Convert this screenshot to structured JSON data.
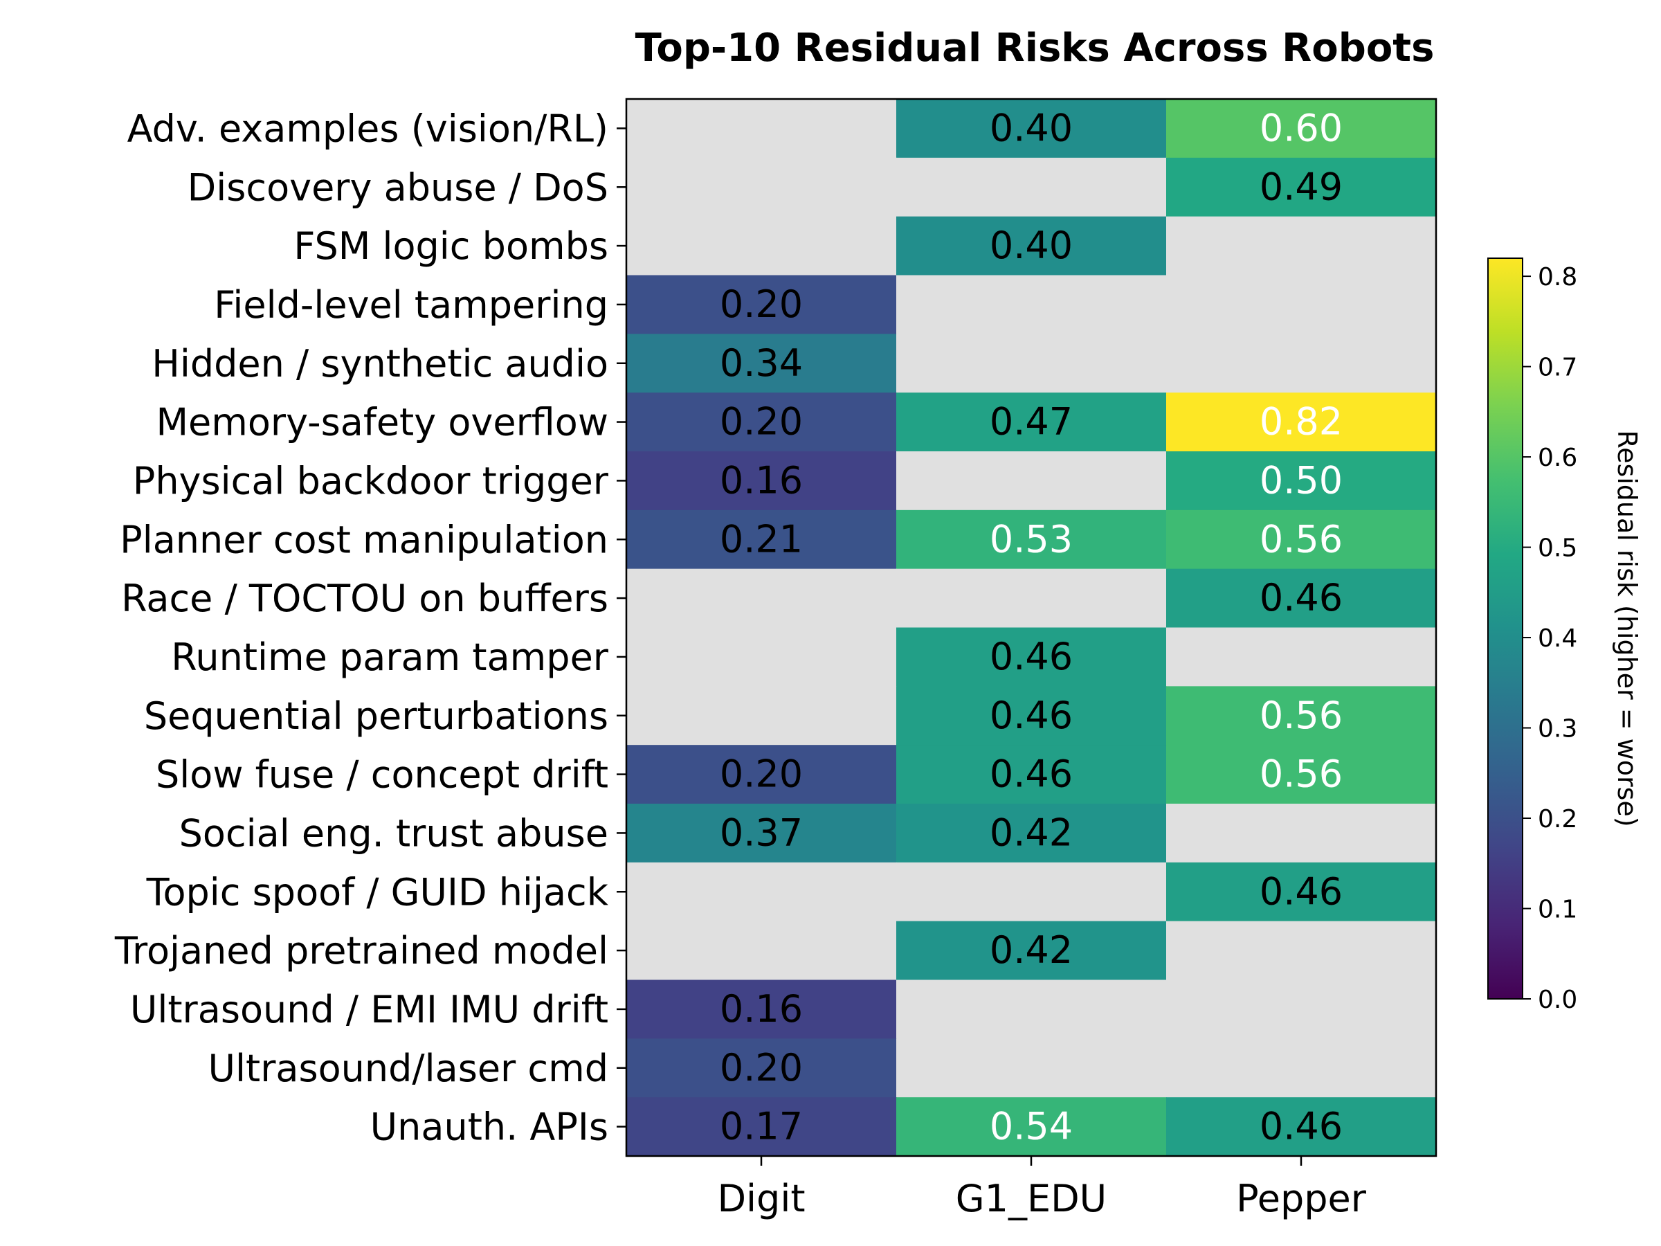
{
  "chart_data": {
    "type": "heatmap",
    "title": "Top-10 Residual Risks Across Robots",
    "xlabel": "",
    "ylabel": "",
    "columns": [
      "Digit",
      "G1_EDU",
      "Pepper"
    ],
    "rows": [
      "Adv. examples (vision/RL)",
      "Discovery abuse / DoS",
      "FSM logic bombs",
      "Field-level tampering",
      "Hidden / synthetic audio",
      "Memory-safety overflow",
      "Physical backdoor trigger",
      "Planner cost manipulation",
      "Race / TOCTOU on buffers",
      "Runtime param tamper",
      "Sequential perturbations",
      "Slow fuse / concept drift",
      "Social eng. trust abuse",
      "Topic spoof / GUID hijack",
      "Trojaned pretrained model",
      "Ultrasound / EMI IMU drift",
      "Ultrasound/laser cmd",
      "Unauth. APIs"
    ],
    "values": [
      [
        null,
        0.4,
        0.6
      ],
      [
        null,
        null,
        0.49
      ],
      [
        null,
        0.4,
        null
      ],
      [
        0.2,
        null,
        null
      ],
      [
        0.34,
        null,
        null
      ],
      [
        0.2,
        0.47,
        0.82
      ],
      [
        0.16,
        null,
        0.5
      ],
      [
        0.21,
        0.53,
        0.56
      ],
      [
        null,
        null,
        0.46
      ],
      [
        null,
        0.46,
        null
      ],
      [
        null,
        0.46,
        0.56
      ],
      [
        0.2,
        0.46,
        0.56
      ],
      [
        0.37,
        0.42,
        null
      ],
      [
        null,
        null,
        0.46
      ],
      [
        null,
        0.42,
        null
      ],
      [
        0.16,
        null,
        null
      ],
      [
        0.2,
        null,
        null
      ],
      [
        0.17,
        0.54,
        0.46
      ]
    ],
    "colorscale": "viridis",
    "vmin": 0.0,
    "vmax": 0.82,
    "missing_color": "#e0e0e0",
    "colorbar": {
      "label": "Residual risk (higher = worse)",
      "ticks": [
        "0.0",
        "0.1",
        "0.2",
        "0.3",
        "0.4",
        "0.5",
        "0.6",
        "0.7",
        "0.8"
      ]
    }
  }
}
